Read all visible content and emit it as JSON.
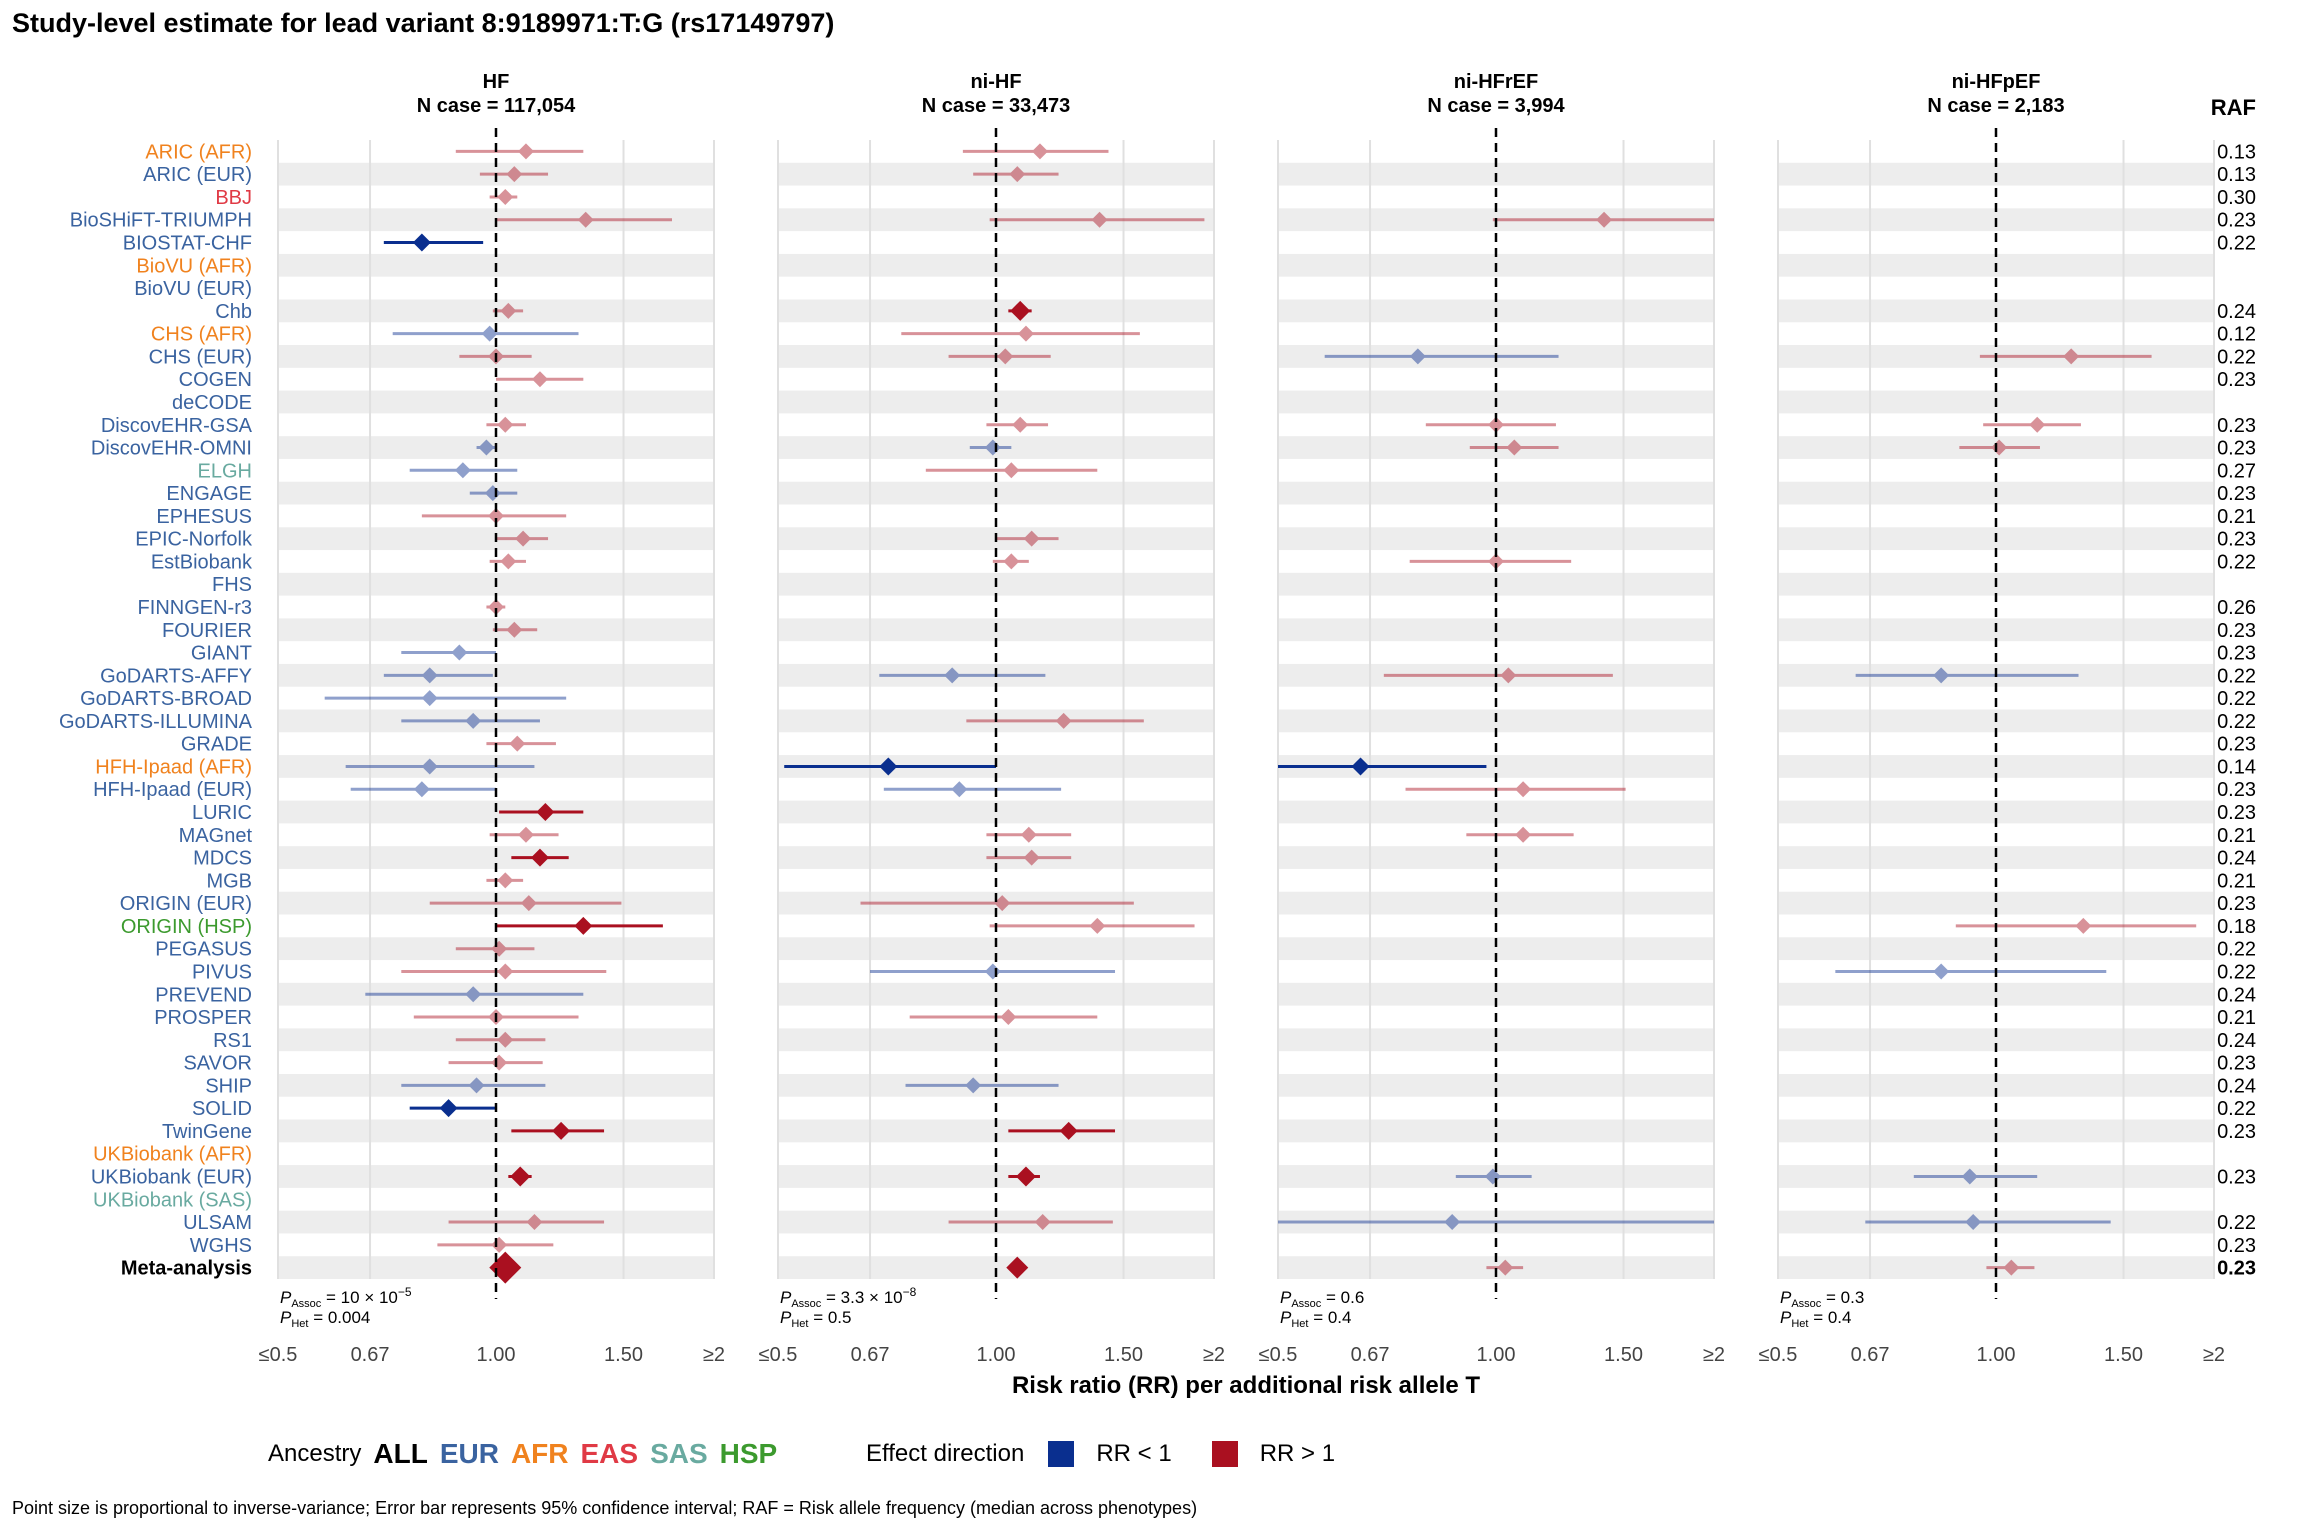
{
  "title": "Study-level estimate for lead variant 8:9189971:T:G (rs17149797)",
  "chart_data": {
    "type": "forest",
    "x_scale": "log",
    "x_ticks": [
      "≤0.5",
      "0.67",
      "1.00",
      "1.50",
      "≥2"
    ],
    "x_tick_values": [
      0.5,
      0.67,
      1.0,
      1.5,
      2.0
    ],
    "xlim": [
      0.5,
      2.0
    ],
    "xlabel": "Risk ratio (RR) per additional risk allele T",
    "raf_header": "RAF",
    "studies": [
      {
        "name": "ARIC (AFR)",
        "anc": "AFR",
        "raf": "0.13"
      },
      {
        "name": "ARIC (EUR)",
        "anc": "EUR",
        "raf": "0.13"
      },
      {
        "name": "BBJ",
        "anc": "EAS",
        "raf": "0.30"
      },
      {
        "name": "BioSHiFT-TRIUMPH",
        "anc": "EUR",
        "raf": "0.23"
      },
      {
        "name": "BIOSTAT-CHF",
        "anc": "EUR",
        "raf": "0.22"
      },
      {
        "name": "BioVU (AFR)",
        "anc": "AFR",
        "raf": ""
      },
      {
        "name": "BioVU (EUR)",
        "anc": "EUR",
        "raf": ""
      },
      {
        "name": "Chb",
        "anc": "EUR",
        "raf": "0.24"
      },
      {
        "name": "CHS (AFR)",
        "anc": "AFR",
        "raf": "0.12"
      },
      {
        "name": "CHS (EUR)",
        "anc": "EUR",
        "raf": "0.22"
      },
      {
        "name": "COGEN",
        "anc": "EUR",
        "raf": "0.23"
      },
      {
        "name": "deCODE",
        "anc": "EUR",
        "raf": ""
      },
      {
        "name": "DiscovEHR-GSA",
        "anc": "EUR",
        "raf": "0.23"
      },
      {
        "name": "DiscovEHR-OMNI",
        "anc": "EUR",
        "raf": "0.23"
      },
      {
        "name": "ELGH",
        "anc": "SAS",
        "raf": "0.27"
      },
      {
        "name": "ENGAGE",
        "anc": "EUR",
        "raf": "0.23"
      },
      {
        "name": "EPHESUS",
        "anc": "EUR",
        "raf": "0.21"
      },
      {
        "name": "EPIC-Norfolk",
        "anc": "EUR",
        "raf": "0.23"
      },
      {
        "name": "EstBiobank",
        "anc": "EUR",
        "raf": "0.22"
      },
      {
        "name": "FHS",
        "anc": "EUR",
        "raf": ""
      },
      {
        "name": "FINNGEN-r3",
        "anc": "EUR",
        "raf": "0.26"
      },
      {
        "name": "FOURIER",
        "anc": "EUR",
        "raf": "0.23"
      },
      {
        "name": "GIANT",
        "anc": "EUR",
        "raf": "0.23"
      },
      {
        "name": "GoDARTS-AFFY",
        "anc": "EUR",
        "raf": "0.22"
      },
      {
        "name": "GoDARTS-BROAD",
        "anc": "EUR",
        "raf": "0.22"
      },
      {
        "name": "GoDARTS-ILLUMINA",
        "anc": "EUR",
        "raf": "0.22"
      },
      {
        "name": "GRADE",
        "anc": "EUR",
        "raf": "0.23"
      },
      {
        "name": "HFH-Ipaad (AFR)",
        "anc": "AFR",
        "raf": "0.14"
      },
      {
        "name": "HFH-Ipaad (EUR)",
        "anc": "EUR",
        "raf": "0.23"
      },
      {
        "name": "LURIC",
        "anc": "EUR",
        "raf": "0.23"
      },
      {
        "name": "MAGnet",
        "anc": "EUR",
        "raf": "0.21"
      },
      {
        "name": "MDCS",
        "anc": "EUR",
        "raf": "0.24"
      },
      {
        "name": "MGB",
        "anc": "EUR",
        "raf": "0.21"
      },
      {
        "name": "ORIGIN (EUR)",
        "anc": "EUR",
        "raf": "0.23"
      },
      {
        "name": "ORIGIN (HSP)",
        "anc": "HSP",
        "raf": "0.18"
      },
      {
        "name": "PEGASUS",
        "anc": "EUR",
        "raf": "0.22"
      },
      {
        "name": "PIVUS",
        "anc": "EUR",
        "raf": "0.22"
      },
      {
        "name": "PREVEND",
        "anc": "EUR",
        "raf": "0.24"
      },
      {
        "name": "PROSPER",
        "anc": "EUR",
        "raf": "0.21"
      },
      {
        "name": "RS1",
        "anc": "EUR",
        "raf": "0.24"
      },
      {
        "name": "SAVOR",
        "anc": "EUR",
        "raf": "0.23"
      },
      {
        "name": "SHIP",
        "anc": "EUR",
        "raf": "0.24"
      },
      {
        "name": "SOLID",
        "anc": "EUR",
        "raf": "0.22"
      },
      {
        "name": "TwinGene",
        "anc": "EUR",
        "raf": "0.23"
      },
      {
        "name": "UKBiobank (AFR)",
        "anc": "AFR",
        "raf": ""
      },
      {
        "name": "UKBiobank (EUR)",
        "anc": "EUR",
        "raf": "0.23"
      },
      {
        "name": "UKBiobank (SAS)",
        "anc": "SAS",
        "raf": ""
      },
      {
        "name": "ULSAM",
        "anc": "EUR",
        "raf": "0.22"
      },
      {
        "name": "WGHS",
        "anc": "EUR",
        "raf": "0.23"
      },
      {
        "name": "Meta-analysis",
        "anc": "ALL",
        "raf": "0.23",
        "bold": true
      }
    ],
    "panels": [
      {
        "title": "HF",
        "subtitle": "N case = 117,054",
        "p_assoc": "10 × 10",
        "p_assoc_exp": "−5",
        "p_het": "0.004",
        "estimates": [
          [
            0,
            1.1,
            0.88,
            1.32,
            0.45,
            0
          ],
          [
            1,
            1.06,
            0.95,
            1.18,
            0.45,
            0
          ],
          [
            2,
            1.03,
            0.98,
            1.07,
            0.45,
            0
          ],
          [
            3,
            1.33,
            1.0,
            1.75,
            0.45,
            0
          ],
          [
            4,
            0.79,
            0.7,
            0.96,
            1,
            1
          ],
          [
            7,
            1.04,
            0.99,
            1.09,
            0.45,
            0
          ],
          [
            8,
            0.98,
            0.72,
            1.3,
            0.45,
            0
          ],
          [
            9,
            1.0,
            0.89,
            1.12,
            0.45,
            0
          ],
          [
            10,
            1.15,
            1.0,
            1.32,
            0.45,
            0
          ],
          [
            12,
            1.03,
            0.97,
            1.1,
            0.45,
            0
          ],
          [
            13,
            0.97,
            0.94,
            1.0,
            0.45,
            0
          ],
          [
            14,
            0.9,
            0.76,
            1.07,
            0.45,
            0
          ],
          [
            15,
            0.99,
            0.92,
            1.07,
            0.45,
            0
          ],
          [
            16,
            1.0,
            0.79,
            1.25,
            0.45,
            0
          ],
          [
            17,
            1.09,
            1.0,
            1.18,
            0.45,
            0
          ],
          [
            18,
            1.04,
            0.98,
            1.1,
            0.45,
            0
          ],
          [
            20,
            1.0,
            0.97,
            1.03,
            0.45,
            0
          ],
          [
            21,
            1.06,
            0.99,
            1.14,
            0.45,
            0
          ],
          [
            22,
            0.89,
            0.74,
            1.0,
            0.45,
            0
          ],
          [
            23,
            0.81,
            0.7,
            0.99,
            0.45,
            0
          ],
          [
            24,
            0.81,
            0.58,
            1.25,
            0.45,
            0
          ],
          [
            25,
            0.93,
            0.74,
            1.15,
            0.45,
            0
          ],
          [
            26,
            1.07,
            0.97,
            1.21,
            0.45,
            0
          ],
          [
            27,
            0.81,
            0.62,
            1.13,
            0.45,
            0
          ],
          [
            28,
            0.79,
            0.63,
            1.0,
            0.45,
            0
          ],
          [
            29,
            1.17,
            1.01,
            1.32,
            1,
            1
          ],
          [
            30,
            1.1,
            0.98,
            1.22,
            0.45,
            0
          ],
          [
            31,
            1.15,
            1.05,
            1.26,
            1,
            1
          ],
          [
            32,
            1.03,
            0.97,
            1.09,
            0.45,
            0
          ],
          [
            33,
            1.11,
            0.81,
            1.49,
            0.45,
            0
          ],
          [
            34,
            1.32,
            1.0,
            1.7,
            1,
            1
          ],
          [
            35,
            1.01,
            0.88,
            1.13,
            0.45,
            0
          ],
          [
            36,
            1.03,
            0.74,
            1.42,
            0.45,
            0
          ],
          [
            37,
            0.93,
            0.66,
            1.32,
            0.45,
            0
          ],
          [
            38,
            1.0,
            0.77,
            1.3,
            0.45,
            0
          ],
          [
            39,
            1.03,
            0.88,
            1.17,
            0.45,
            0
          ],
          [
            40,
            1.01,
            0.86,
            1.16,
            0.45,
            0
          ],
          [
            41,
            0.94,
            0.74,
            1.17,
            0.45,
            0
          ],
          [
            42,
            0.86,
            0.76,
            1.0,
            1,
            1
          ],
          [
            43,
            1.23,
            1.05,
            1.41,
            1,
            1
          ],
          [
            45,
            1.08,
            1.04,
            1.12,
            1,
            1.3
          ],
          [
            47,
            1.13,
            0.86,
            1.41,
            0.45,
            0
          ],
          [
            48,
            1.01,
            0.83,
            1.2,
            0.45,
            0
          ],
          [
            49,
            1.03,
            0.99,
            1.07,
            1,
            2
          ]
        ]
      },
      {
        "title": "ni-HF",
        "subtitle": "N case = 33,473",
        "p_assoc": "3.3 × 10",
        "p_assoc_exp": "−8",
        "p_het": "0.5",
        "estimates": [
          [
            0,
            1.15,
            0.9,
            1.43,
            0.45,
            0
          ],
          [
            1,
            1.07,
            0.93,
            1.22,
            0.45,
            0
          ],
          [
            3,
            1.39,
            0.98,
            1.94,
            0.45,
            0
          ],
          [
            7,
            1.08,
            1.04,
            1.12,
            1,
            1.3
          ],
          [
            8,
            1.1,
            0.74,
            1.58,
            0.45,
            0
          ],
          [
            9,
            1.03,
            0.86,
            1.19,
            0.45,
            0
          ],
          [
            12,
            1.08,
            0.97,
            1.18,
            0.45,
            0
          ],
          [
            13,
            0.99,
            0.92,
            1.05,
            0.45,
            0
          ],
          [
            14,
            1.05,
            0.8,
            1.38,
            0.45,
            0
          ],
          [
            17,
            1.12,
            1.0,
            1.22,
            0.45,
            0
          ],
          [
            18,
            1.05,
            0.99,
            1.11,
            0.45,
            0
          ],
          [
            23,
            0.87,
            0.69,
            1.17,
            0.45,
            0
          ],
          [
            25,
            1.24,
            0.91,
            1.6,
            0.45,
            0
          ],
          [
            27,
            0.71,
            0.51,
            1.0,
            1,
            1
          ],
          [
            28,
            0.89,
            0.7,
            1.23,
            0.45,
            0
          ],
          [
            30,
            1.11,
            0.97,
            1.27,
            0.45,
            0
          ],
          [
            31,
            1.12,
            0.97,
            1.27,
            0.45,
            0
          ],
          [
            33,
            1.02,
            0.65,
            1.55,
            0.45,
            0
          ],
          [
            34,
            1.38,
            0.98,
            1.88,
            0.45,
            0
          ],
          [
            36,
            0.99,
            0.67,
            1.46,
            0.45,
            0
          ],
          [
            38,
            1.04,
            0.76,
            1.38,
            0.45,
            0
          ],
          [
            41,
            0.93,
            0.75,
            1.22,
            0.45,
            0
          ],
          [
            43,
            1.26,
            1.04,
            1.46,
            1,
            1
          ],
          [
            45,
            1.1,
            1.04,
            1.15,
            1,
            1.3
          ],
          [
            47,
            1.16,
            0.86,
            1.45,
            0.45,
            0
          ],
          [
            49,
            1.07,
            1.04,
            1.1,
            1,
            1.6
          ]
        ]
      },
      {
        "title": "ni-HFrEF",
        "subtitle": "N case = 3,994",
        "p_assoc": "0.6",
        "p_assoc_exp": "",
        "p_het": "0.4",
        "estimates": [
          [
            3,
            1.41,
            0.99,
            2.0,
            0.45,
            0
          ],
          [
            9,
            0.78,
            0.58,
            1.22,
            0.45,
            0
          ],
          [
            12,
            1.0,
            0.8,
            1.21,
            0.45,
            0
          ],
          [
            13,
            1.06,
            0.92,
            1.22,
            0.45,
            0
          ],
          [
            18,
            1.0,
            0.76,
            1.27,
            0.45,
            0
          ],
          [
            23,
            1.04,
            0.7,
            1.45,
            0.45,
            0
          ],
          [
            27,
            0.65,
            0.5,
            0.97,
            1,
            1
          ],
          [
            28,
            1.09,
            0.75,
            1.51,
            0.45,
            0
          ],
          [
            30,
            1.09,
            0.91,
            1.28,
            0.45,
            0
          ],
          [
            45,
            0.99,
            0.88,
            1.12,
            0.45,
            0
          ],
          [
            47,
            0.87,
            0.5,
            2.0,
            0.45,
            0
          ],
          [
            49,
            1.03,
            0.97,
            1.09,
            0.45,
            0
          ]
        ]
      },
      {
        "title": "ni-HFpEF",
        "subtitle": "N case = 2,183",
        "p_assoc": "0.3",
        "p_assoc_exp": "",
        "p_het": "0.4",
        "estimates": [
          [
            9,
            1.27,
            0.95,
            1.64,
            0.45,
            0
          ],
          [
            12,
            1.14,
            0.96,
            1.31,
            0.45,
            0
          ],
          [
            13,
            1.01,
            0.89,
            1.15,
            0.45,
            0
          ],
          [
            23,
            0.84,
            0.64,
            1.3,
            0.45,
            0
          ],
          [
            34,
            1.32,
            0.88,
            1.89,
            0.45,
            0
          ],
          [
            36,
            0.84,
            0.6,
            1.42,
            0.45,
            0
          ],
          [
            45,
            0.92,
            0.77,
            1.14,
            0.45,
            0
          ],
          [
            47,
            0.93,
            0.66,
            1.44,
            0.45,
            0
          ],
          [
            49,
            1.05,
            0.97,
            1.13,
            0.45,
            0
          ]
        ]
      }
    ]
  },
  "colors": {
    "ALL": "#000000",
    "EUR": "#3a63a0",
    "AFR": "#f0821e",
    "EAS": "#e03a45",
    "SAS": "#69aaa0",
    "HSP": "#3c9a2e",
    "neg": "#0a2f8f",
    "pos": "#aa1020",
    "band": "#ededed",
    "grid": "#e0e0e0"
  },
  "legend": {
    "ancestry_title": "Ancestry",
    "ancestry_items": [
      {
        "label": "ALL",
        "anc": "ALL"
      },
      {
        "label": "EUR",
        "anc": "EUR"
      },
      {
        "label": "AFR",
        "anc": "AFR"
      },
      {
        "label": "EAS",
        "anc": "EAS"
      },
      {
        "label": "SAS",
        "anc": "SAS"
      },
      {
        "label": "HSP",
        "anc": "HSP"
      }
    ],
    "effect_title": "Effect direction",
    "neg_label": "RR < 1",
    "pos_label": "RR > 1"
  },
  "caption": "Point size is proportional to inverse-variance; Error bar represents 95% confidence interval; RAF = Risk allele frequency (median across phenotypes)"
}
